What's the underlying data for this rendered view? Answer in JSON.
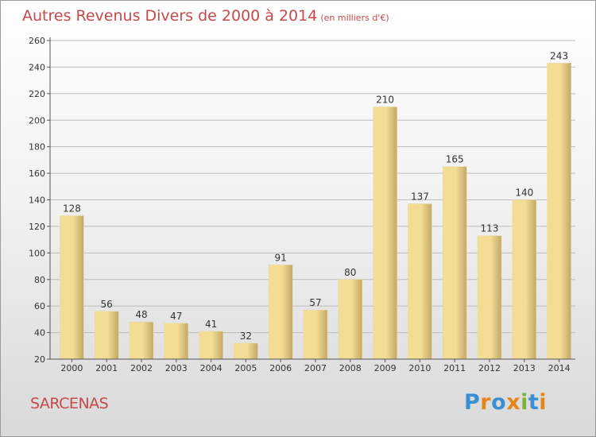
{
  "title": "Autres Revenus Divers de 2000 à 2014",
  "title_unit": "(en milliers d'€)",
  "location": "SARCENAS",
  "logo": {
    "text": "Proxiti",
    "letter_colors": [
      "#3a8fd0",
      "#e5851c",
      "#3a8fd0",
      "#e5851c",
      "#7bb33a",
      "#3a8fd0",
      "#e5851c"
    ]
  },
  "colors": {
    "title": "#c64a4a",
    "bar_light": "#f3dc94",
    "bar_dark": "#c2a865",
    "axis": "#555555",
    "grid": "#bdbdbd"
  },
  "chart_data": {
    "type": "bar",
    "title": "Autres Revenus Divers de 2000 à 2014",
    "subtitle": "(en milliers d'€)",
    "xlabel": "",
    "ylabel": "",
    "categories": [
      "2000",
      "2001",
      "2002",
      "2003",
      "2004",
      "2005",
      "2006",
      "2007",
      "2008",
      "2009",
      "2010",
      "2011",
      "2012",
      "2013",
      "2014"
    ],
    "values": [
      128,
      56,
      48,
      47,
      41,
      32,
      91,
      57,
      80,
      210,
      137,
      165,
      113,
      140,
      243
    ],
    "ylim": [
      20,
      260
    ],
    "yticks": [
      20,
      40,
      60,
      80,
      100,
      120,
      140,
      160,
      180,
      200,
      220,
      240,
      260
    ],
    "grid": true,
    "data_labels": true,
    "legend": "none"
  }
}
